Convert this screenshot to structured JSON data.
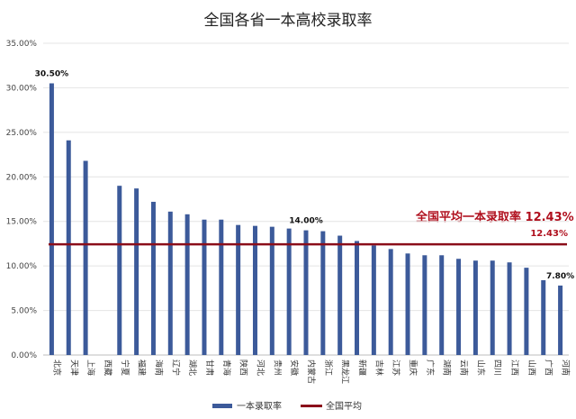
{
  "chart_data": {
    "type": "bar",
    "title": "全国各省一本高校录取率",
    "xlabel": "",
    "ylabel": "",
    "ylim": [
      0,
      35
    ],
    "y_ticks": [
      "0.00%",
      "5.00%",
      "10.00%",
      "15.00%",
      "20.00%",
      "25.00%",
      "30.00%",
      "35.00%"
    ],
    "grid": true,
    "legend_position": "bottom-center",
    "categories": [
      "北京",
      "天津",
      "上海",
      "西藏",
      "宁夏",
      "福建",
      "海南",
      "辽宁",
      "湖北",
      "甘肃",
      "青海",
      "陕西",
      "河北",
      "贵州",
      "安徽",
      "内蒙古",
      "浙江",
      "黑龙江",
      "新疆",
      "吉林",
      "江苏",
      "重庆",
      "广东",
      "湖南",
      "云南",
      "山东",
      "四川",
      "江西",
      "山西",
      "广西",
      "河南"
    ],
    "series": [
      {
        "name": "一本录取率",
        "color": "#3c5a9a",
        "values": [
          30.5,
          24.1,
          21.8,
          0,
          19.0,
          18.7,
          17.2,
          16.1,
          15.8,
          15.2,
          15.2,
          14.6,
          14.5,
          14.4,
          14.2,
          14.0,
          13.9,
          13.4,
          12.8,
          12.3,
          11.9,
          11.4,
          11.2,
          11.2,
          10.8,
          10.6,
          10.6,
          10.4,
          9.8,
          8.4,
          7.8
        ]
      },
      {
        "name": "全国平均",
        "color": "#8b0e1a",
        "type": "line",
        "value": 12.43
      }
    ],
    "data_labels": [
      {
        "category": "北京",
        "text": "30.50%"
      },
      {
        "category": "内蒙古",
        "text": "14.00%"
      },
      {
        "category": "河南",
        "text": "7.80%"
      }
    ],
    "average_label": "12.43%",
    "annotation": "全国平均一本录取率 12.43%"
  }
}
